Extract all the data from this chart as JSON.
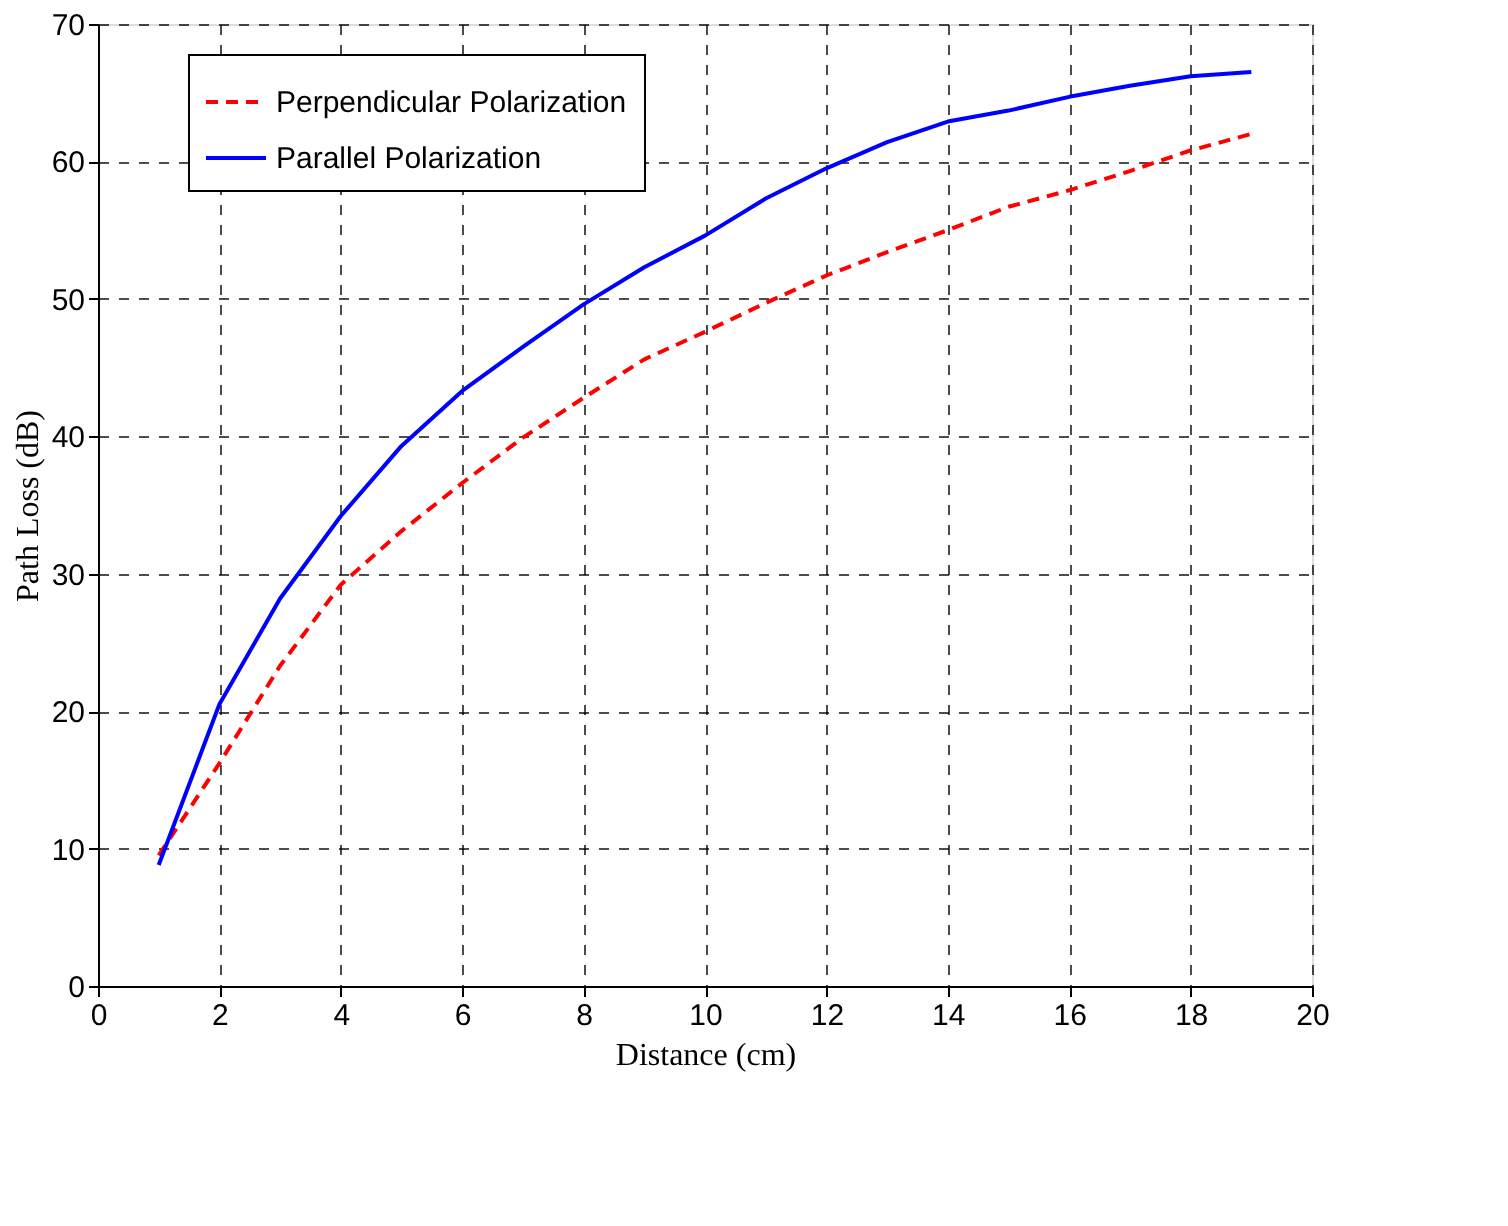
{
  "chart_data": {
    "type": "line",
    "xlabel": "Distance (cm)",
    "ylabel": "Path Loss (dB)",
    "x": [
      1,
      2,
      3,
      4,
      5,
      6,
      7,
      8,
      9,
      10,
      11,
      12,
      13,
      14,
      15,
      16,
      17,
      18,
      19
    ],
    "series": [
      {
        "name": "Perpendicular Polarization",
        "color": "#ff0000",
        "line_style": "dashed",
        "values": [
          9.5,
          16.2,
          23.3,
          29.2,
          33.1,
          36.6,
          39.9,
          42.8,
          45.6,
          47.6,
          49.7,
          51.7,
          53.4,
          55.0,
          56.7,
          57.9,
          59.3,
          60.8,
          62.0
        ]
      },
      {
        "name": "Parallel Polarization",
        "color": "#0000ff",
        "line_style": "solid",
        "values": [
          8.8,
          20.5,
          28.2,
          34.2,
          39.3,
          43.3,
          46.5,
          49.6,
          52.3,
          54.6,
          57.3,
          59.5,
          61.4,
          62.9,
          63.7,
          64.7,
          65.5,
          66.2,
          66.5
        ]
      }
    ],
    "xlim": [
      0,
      20
    ],
    "xticks": [
      0,
      2,
      4,
      6,
      8,
      10,
      12,
      14,
      16,
      18,
      20
    ],
    "ylim": [
      0,
      70
    ],
    "yticks": [
      0,
      10,
      20,
      30,
      40,
      50,
      60,
      70
    ],
    "grid": true,
    "legend": "top left",
    "marker": "none"
  }
}
